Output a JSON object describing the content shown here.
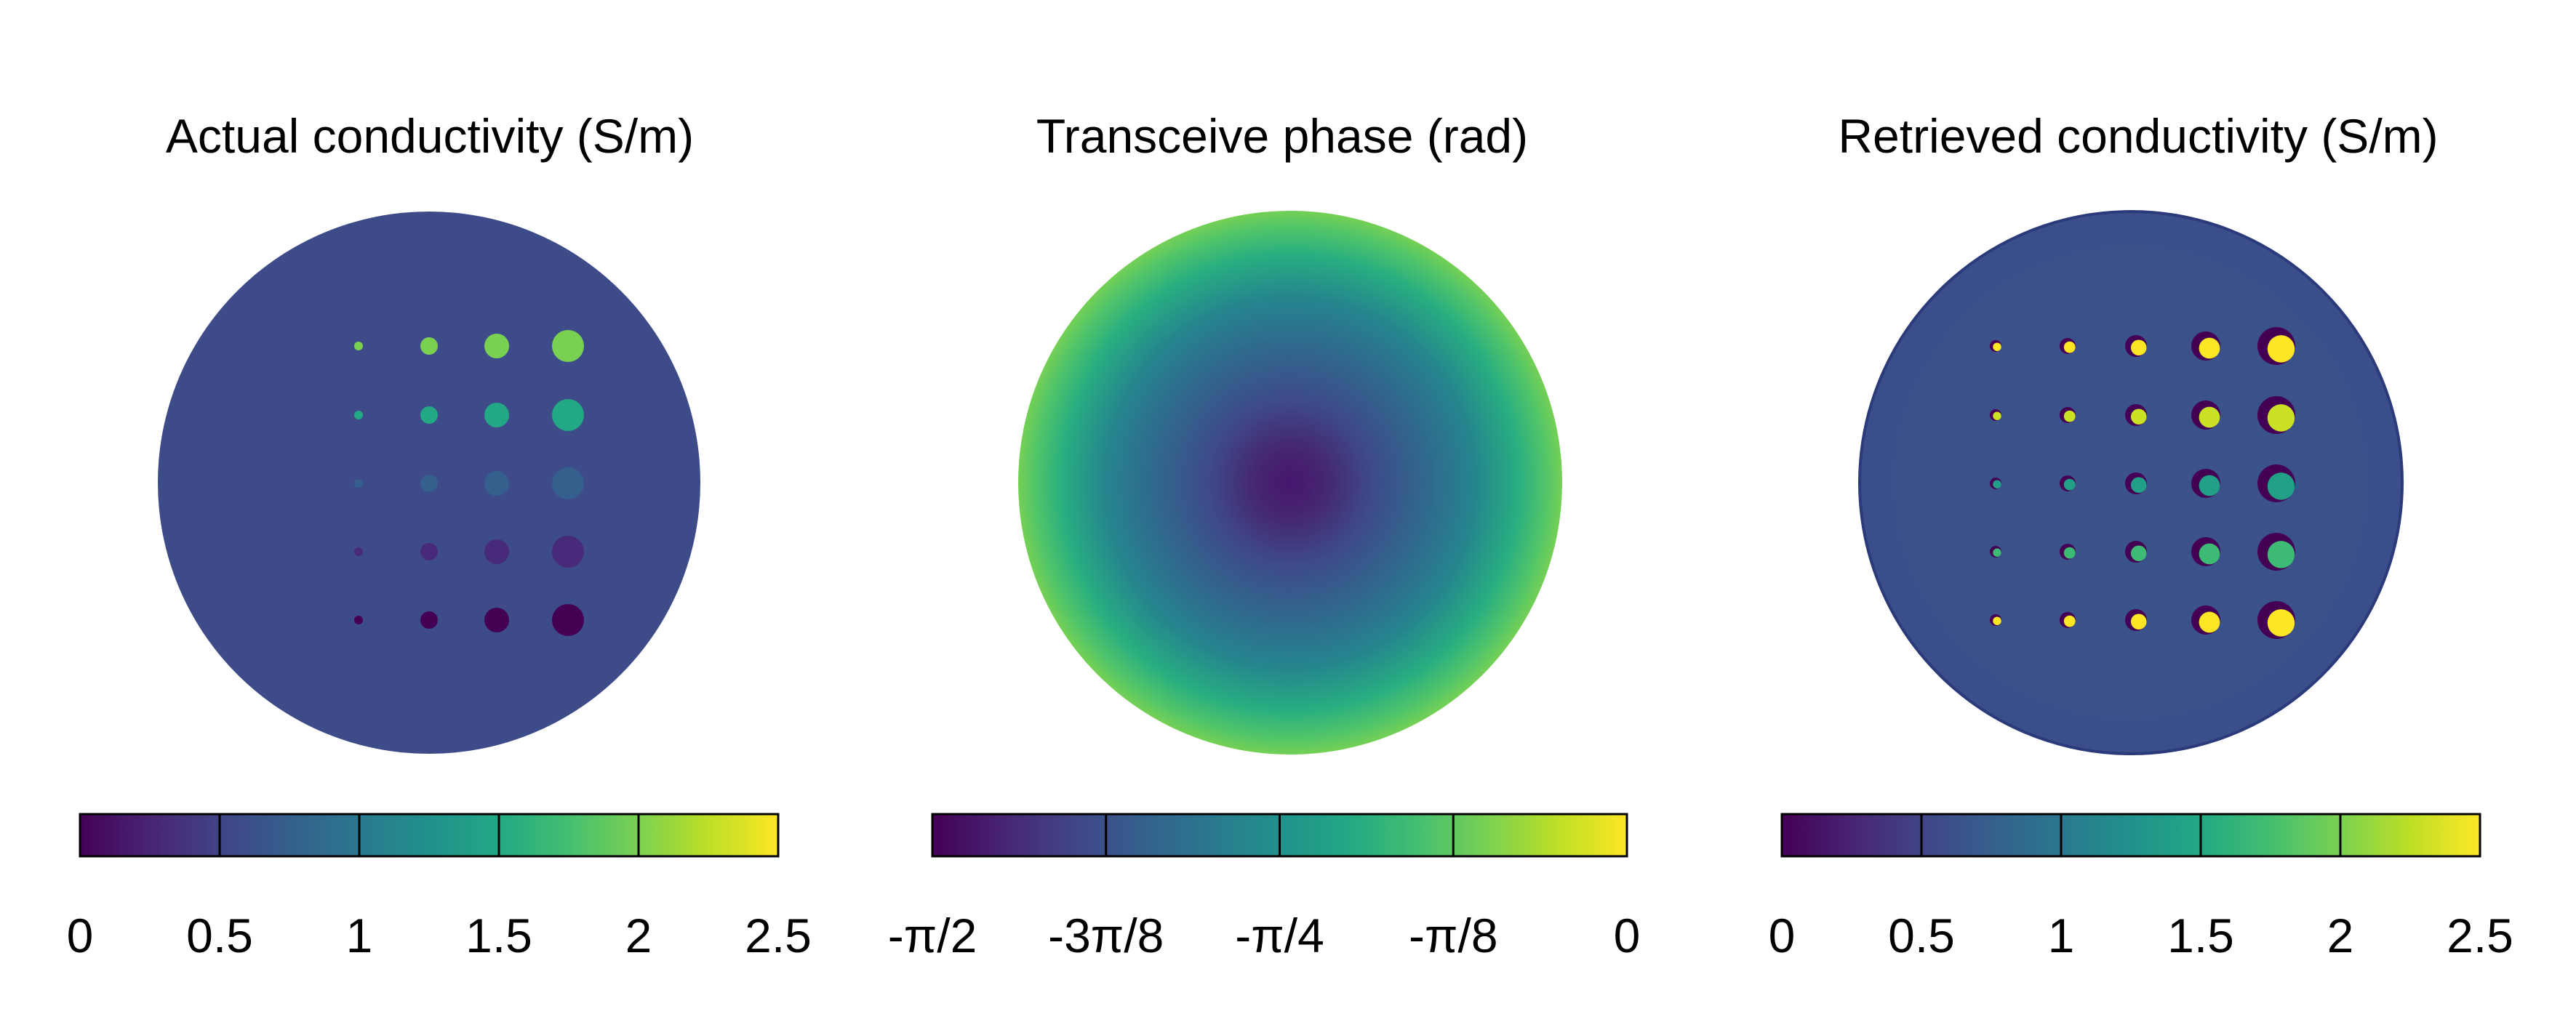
{
  "panels": [
    {
      "title": "Actual conductivity (S/m)",
      "tick_labels": [
        "0",
        "0.5",
        "1",
        "1.5",
        "2",
        "2.5"
      ]
    },
    {
      "title": "Transceive phase (rad)",
      "tick_labels": [
        "-π/2",
        "-3π/8",
        "-π/4",
        "-π/8",
        "0"
      ]
    },
    {
      "title": "Retrieved conductivity (S/m)",
      "tick_labels": [
        "0",
        "0.5",
        "1",
        "1.5",
        "2",
        "2.5"
      ]
    }
  ],
  "colormap": "viridis",
  "chart_data": [
    {
      "type": "heatmap",
      "title": "Actual conductivity (S/m)",
      "colorbar_ticks": [
        0,
        0.5,
        1,
        1.5,
        2,
        2.5
      ],
      "clim": [
        0,
        2.5
      ],
      "background_value": 0.5,
      "inclusion_grid": {
        "rows_top_to_bottom": [
          {
            "value": 2.0,
            "sizes": [
              "tiny",
              "small",
              "medium",
              "large"
            ]
          },
          {
            "value": 1.5,
            "sizes": [
              "tiny",
              "small",
              "medium",
              "large"
            ]
          },
          {
            "value": 0.75,
            "sizes": [
              "tiny",
              "small",
              "medium",
              "large"
            ]
          },
          {
            "value": 0.3,
            "sizes": [
              "tiny",
              "small",
              "medium",
              "large"
            ]
          },
          {
            "value": 0.0,
            "sizes": [
              "tiny",
              "small",
              "medium",
              "large"
            ]
          }
        ]
      }
    },
    {
      "type": "heatmap",
      "title": "Transceive phase (rad)",
      "colorbar_ticks": [
        "-π/2",
        "-3π/8",
        "-π/4",
        "-π/8",
        "0"
      ],
      "clim": [
        -1.5708,
        0
      ],
      "center_value": -1.45,
      "edge_value": -0.28
    },
    {
      "type": "heatmap",
      "title": "Retrieved conductivity (S/m)",
      "colorbar_ticks": [
        0,
        0.5,
        1,
        1.5,
        2,
        2.5
      ],
      "clim": [
        0,
        2.5
      ],
      "background_value": 0.55,
      "inclusion_grid": {
        "rows_top_to_bottom": [
          {
            "bright_value": 2.5,
            "dark_value": 0.0
          },
          {
            "bright_value": 2.3,
            "dark_value": 0.0
          },
          {
            "bright_value": 1.4,
            "dark_value": 0.0
          },
          {
            "bright_value": 1.7,
            "dark_value": 0.0
          },
          {
            "bright_value": 2.5,
            "dark_value": 0.0
          }
        ]
      }
    }
  ]
}
